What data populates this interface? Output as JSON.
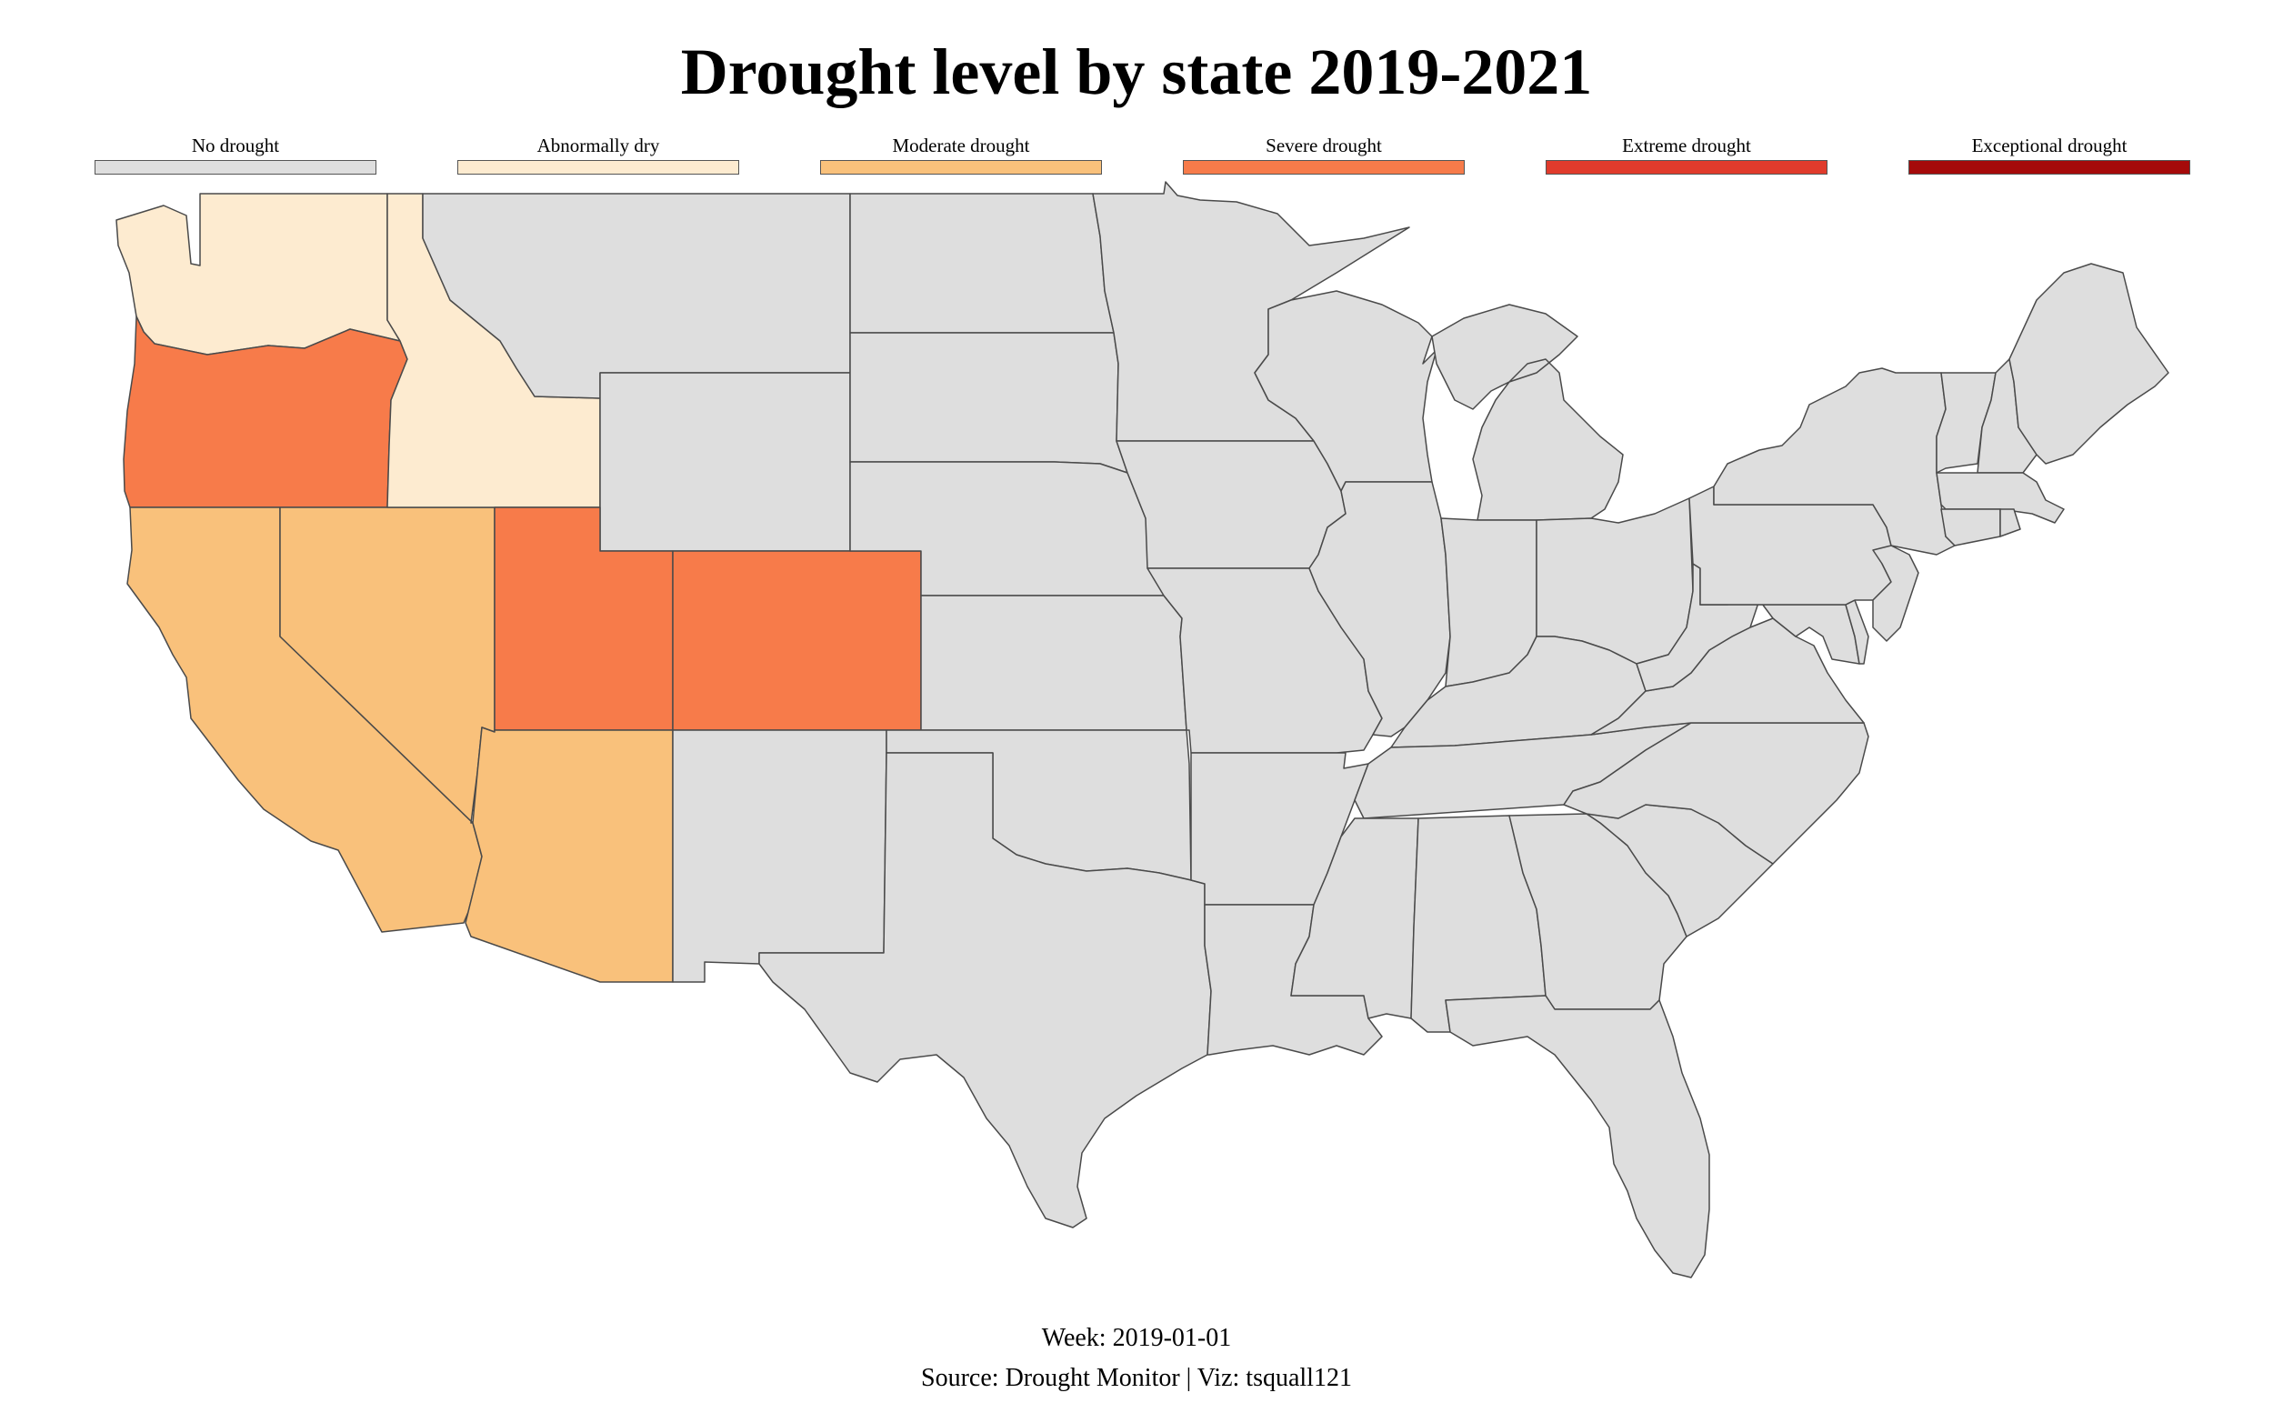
{
  "title": "Drought level by state 2019-2021",
  "legend": [
    {
      "label": "No drought",
      "color": "#dedede"
    },
    {
      "label": "Abnormally dry",
      "color": "#fdebd0"
    },
    {
      "label": "Moderate drought",
      "color": "#f9c17b"
    },
    {
      "label": "Severe drought",
      "color": "#f77b4a"
    },
    {
      "label": "Extreme drought",
      "color": "#e03b2c"
    },
    {
      "label": "Exceptional drought",
      "color": "#a50a0a"
    }
  ],
  "week": "Week: 2019-01-01",
  "source": "Source: Drought Monitor | Viz: tsquall121",
  "states": {
    "washington": "Abnormally dry",
    "idaho": "Abnormally dry",
    "oregon": "Severe drought",
    "utah": "Severe drought",
    "colorado": "Severe drought",
    "california": "Moderate drought",
    "nevada": "Moderate drought",
    "arizona": "Moderate drought",
    "montana": "No drought",
    "wyoming": "No drought",
    "new-mexico": "No drought",
    "north-dakota": "No drought",
    "south-dakota": "No drought",
    "nebraska": "No drought",
    "kansas": "No drought",
    "oklahoma": "No drought",
    "texas": "No drought",
    "minnesota": "No drought",
    "iowa": "No drought",
    "missouri": "No drought",
    "arkansas": "No drought",
    "louisiana": "No drought",
    "wisconsin": "No drought",
    "illinois": "No drought",
    "michigan": "No drought",
    "indiana": "No drought",
    "ohio": "No drought",
    "kentucky": "No drought",
    "tennessee": "No drought",
    "mississippi": "No drought",
    "alabama": "No drought",
    "georgia": "No drought",
    "florida": "No drought",
    "south-carolina": "No drought",
    "north-carolina": "No drought",
    "virginia": "No drought",
    "west-virginia": "No drought",
    "maryland": "No drought",
    "delaware": "No drought",
    "pennsylvania": "No drought",
    "new-jersey": "No drought",
    "new-york": "No drought",
    "connecticut": "No drought",
    "rhode-island": "No drought",
    "massachusetts": "No drought",
    "vermont": "No drought",
    "new-hampshire": "No drought",
    "maine": "No drought"
  }
}
